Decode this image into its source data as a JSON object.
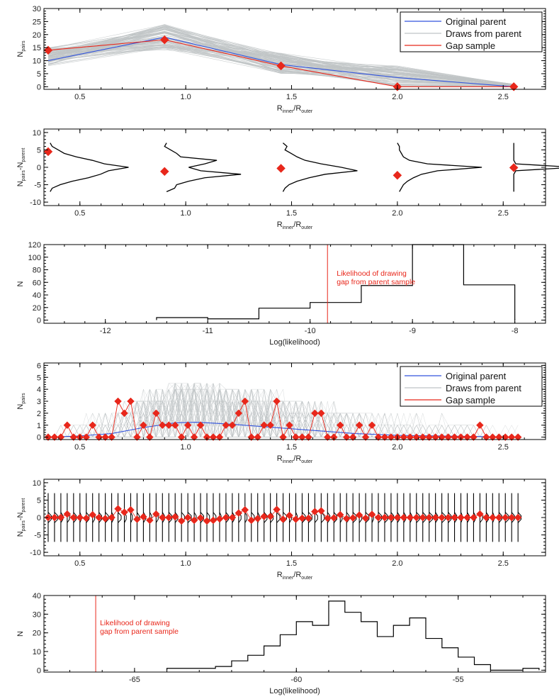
{
  "colors": {
    "original_parent": "#3355dd",
    "draws": "#bfc4c6",
    "gap": "#e8271b",
    "black": "#000000"
  },
  "chart_data": [
    {
      "id": "p1",
      "type": "line",
      "xlim": [
        0.33,
        2.7
      ],
      "ylim": [
        -1,
        30
      ],
      "xticks": [
        "0.5",
        "1.0",
        "1.5",
        "2.0",
        "2.5"
      ],
      "yticks": [
        "0",
        "5",
        "10",
        "15",
        "20",
        "25",
        "30"
      ],
      "xlabel": {
        "main": "R",
        "sub1": "inner",
        "mid": "/R",
        "sub2": "outer"
      },
      "ylabel": {
        "main": "N",
        "sub": "pairs"
      },
      "legend": {
        "placement": "top-right",
        "entries": [
          "Original parent",
          "Draws from parent",
          "Gap sample"
        ]
      },
      "series": [
        {
          "name": "Original parent",
          "x": [
            0.35,
            0.9,
            1.45,
            2.0,
            2.55
          ],
          "values": [
            10,
            19,
            8.5,
            3.5,
            0
          ]
        },
        {
          "name": "Gap sample",
          "x": [
            0.35,
            0.9,
            1.45,
            2.0,
            2.55
          ],
          "values": [
            14,
            18,
            8,
            0,
            0
          ]
        }
      ],
      "draws_band": {
        "x": [
          0.35,
          0.9,
          1.45,
          2.0,
          2.55
        ],
        "low": [
          8,
          14,
          5,
          0,
          0
        ],
        "high": [
          15,
          24,
          13,
          8,
          1
        ]
      }
    },
    {
      "id": "p2",
      "type": "line",
      "xlim": [
        0.33,
        2.7
      ],
      "ylim": [
        -11,
        11
      ],
      "xticks": [
        "0.5",
        "1.0",
        "1.5",
        "2.0",
        "2.5"
      ],
      "yticks": [
        "-10",
        "-5",
        "0",
        "5",
        "10"
      ],
      "xlabel": {
        "main": "R",
        "sub1": "inner",
        "mid": "/R",
        "sub2": "outer"
      },
      "ylabel": {
        "main": "N",
        "sub": "pairs",
        "mid": "-N",
        "sub2": "parent"
      },
      "points": {
        "x": [
          0.35,
          0.9,
          1.45,
          2.0,
          2.55
        ],
        "values": [
          4.5,
          -1.2,
          -0.3,
          -2.3,
          -0.1
        ]
      },
      "distributions": [
        {
          "x0": 0.35,
          "y": [
            -7,
            -6,
            -5,
            -4,
            -3,
            -2,
            -1,
            0,
            1,
            2,
            3,
            4,
            5,
            6,
            7
          ],
          "w": [
            0.01,
            0.02,
            0.06,
            0.12,
            0.2,
            0.26,
            0.3,
            0.4,
            0.28,
            0.22,
            0.14,
            0.08,
            0.05,
            0.02,
            0.01
          ]
        },
        {
          "x0": 0.9,
          "y": [
            -7,
            -6,
            -5,
            -4,
            -3,
            -2,
            -1,
            0,
            1,
            2,
            3,
            4,
            5,
            6,
            7
          ],
          "w": [
            0.01,
            0.05,
            0.06,
            0.12,
            0.2,
            0.38,
            0.18,
            0.12,
            0.2,
            0.26,
            0.08,
            0.06,
            0.03,
            0.0,
            0.01
          ]
        },
        {
          "x0": 1.45,
          "y": [
            -7,
            -6,
            -5,
            -4,
            -3,
            -2,
            -1,
            0,
            1,
            2,
            3,
            4,
            5,
            6,
            7
          ],
          "w": [
            0.01,
            0.02,
            0.04,
            0.08,
            0.14,
            0.22,
            0.38,
            0.3,
            0.2,
            0.12,
            0.08,
            0.05,
            0.02,
            0.03,
            0.01
          ]
        },
        {
          "x0": 2.0,
          "y": [
            -7,
            -6,
            -5,
            -4,
            -3,
            -2,
            -1,
            0,
            1,
            2,
            3,
            4,
            5,
            6,
            7
          ],
          "w": [
            0.01,
            0.02,
            0.03,
            0.05,
            0.08,
            0.12,
            0.2,
            0.42,
            0.15,
            0.06,
            0.03,
            0.02,
            0.01,
            0.01,
            0.0
          ]
        },
        {
          "x0": 2.55,
          "y": [
            -7,
            -6,
            -5,
            -4,
            -3,
            -2,
            -1,
            0,
            1,
            2,
            3,
            4,
            5,
            6,
            7
          ],
          "w": [
            0.0,
            0.0,
            0.0,
            0.0,
            0.0,
            0.0,
            0.01,
            0.3,
            0.01,
            0.0,
            0.0,
            0.0,
            0.0,
            0.0,
            0.0
          ]
        }
      ]
    },
    {
      "id": "p3",
      "type": "bar",
      "xlim": [
        -12.6,
        -7.7
      ],
      "ylim": [
        -5,
        120
      ],
      "xticks": [
        "-12",
        "-11",
        "-10",
        "-9",
        "-8"
      ],
      "yticks": [
        "0",
        "20",
        "40",
        "60",
        "80",
        "100",
        "120"
      ],
      "xlabel": "Log(likelihood)",
      "ylabel": "N",
      "bin_edges": [
        -11.5,
        -11.0,
        -10.5,
        -10.0,
        -9.5,
        -9.0,
        -8.5,
        -8.0
      ],
      "counts": [
        4,
        2,
        19,
        28,
        55,
        120,
        56
      ],
      "marker": {
        "x": -9.83,
        "label_line1": "Likelihood of drawing",
        "label_line2": "gap from parent sample"
      }
    },
    {
      "id": "p4",
      "type": "line",
      "xlim": [
        0.33,
        2.7
      ],
      "ylim": [
        -0.2,
        6.2
      ],
      "xticks": [
        "0.5",
        "1.0",
        "1.5",
        "2.0",
        "2.5"
      ],
      "yticks": [
        "0",
        "1",
        "2",
        "3",
        "4",
        "5",
        "6"
      ],
      "xlabel": {
        "main": "R",
        "sub1": "inner",
        "mid": "/R",
        "sub2": "outer"
      },
      "ylabel": {
        "main": "N",
        "sub": "pairs"
      },
      "legend": {
        "placement": "top-right",
        "entries": [
          "Original parent",
          "Draws from parent",
          "Gap sample"
        ]
      },
      "parent_curve": {
        "x": [
          0.35,
          0.5,
          0.65,
          0.8,
          0.95,
          1.05,
          1.2,
          1.35,
          1.5,
          1.65,
          1.8,
          2.0,
          2.2,
          2.4,
          2.58
        ],
        "values": [
          0.0,
          0.1,
          0.3,
          0.8,
          1.2,
          1.25,
          1.1,
          0.9,
          0.7,
          0.5,
          0.3,
          0.15,
          0.1,
          0.05,
          0.0
        ]
      },
      "gap": {
        "x": [
          0.35,
          0.38,
          0.41,
          0.44,
          0.47,
          0.5,
          0.53,
          0.56,
          0.59,
          0.62,
          0.65,
          0.68,
          0.71,
          0.74,
          0.77,
          0.8,
          0.83,
          0.86,
          0.89,
          0.92,
          0.95,
          0.98,
          1.01,
          1.04,
          1.07,
          1.1,
          1.13,
          1.16,
          1.19,
          1.22,
          1.25,
          1.28,
          1.31,
          1.34,
          1.37,
          1.4,
          1.43,
          1.46,
          1.49,
          1.52,
          1.55,
          1.58,
          1.61,
          1.64,
          1.67,
          1.7,
          1.73,
          1.76,
          1.79,
          1.82,
          1.85,
          1.88,
          1.91,
          1.94,
          1.97,
          2.0,
          2.03,
          2.06,
          2.09,
          2.12,
          2.15,
          2.18,
          2.21,
          2.24,
          2.27,
          2.3,
          2.33,
          2.36,
          2.39,
          2.42,
          2.45,
          2.48,
          2.51,
          2.54,
          2.57
        ],
        "values": [
          0,
          0,
          0,
          1,
          0,
          0,
          0,
          1,
          0,
          0,
          0,
          3,
          2,
          3,
          0,
          1,
          0,
          2,
          1,
          1,
          1,
          0,
          1,
          0,
          1,
          0,
          0,
          0,
          1,
          1,
          2,
          3,
          0,
          0,
          1,
          1,
          3,
          0,
          1,
          0,
          0,
          0,
          2,
          2,
          0,
          0,
          1,
          0,
          0,
          1,
          0,
          1,
          0,
          0,
          0,
          0,
          0,
          0,
          0,
          0,
          0,
          0,
          0,
          0,
          0,
          0,
          0,
          0,
          1,
          0,
          0,
          0,
          0,
          0,
          0
        ]
      }
    },
    {
      "id": "p5",
      "type": "line",
      "xlim": [
        0.33,
        2.7
      ],
      "ylim": [
        -11,
        11
      ],
      "xticks": [
        "0.5",
        "1.0",
        "1.5",
        "2.0",
        "2.5"
      ],
      "yticks": [
        "-10",
        "-5",
        "0",
        "5",
        "10"
      ],
      "xlabel": {
        "main": "R",
        "sub1": "inner",
        "mid": "/R",
        "sub2": "outer"
      },
      "ylabel": {
        "main": "N",
        "sub": "pairs",
        "mid": "-N",
        "sub2": "parent"
      },
      "x_start": 0.35,
      "x_step": 0.03,
      "n_points": 75,
      "points": [
        0,
        0,
        0,
        1,
        0,
        0,
        -0.2,
        0.8,
        0,
        -0.3,
        0,
        2.5,
        1.5,
        2.2,
        -0.5,
        0.2,
        -0.8,
        1,
        0,
        0,
        0.2,
        -1,
        0,
        -0.8,
        -0.1,
        -1,
        -0.8,
        -0.4,
        0,
        0,
        1.3,
        2.2,
        -0.8,
        -0.3,
        0.3,
        0.3,
        2.3,
        -0.5,
        0.6,
        -0.5,
        -0.2,
        -0.2,
        1.7,
        1.9,
        -0.2,
        -0.1,
        0.8,
        -0.3,
        -0.1,
        0.7,
        -0.2,
        0.9,
        0,
        0,
        0,
        0,
        0,
        0,
        0,
        0,
        0,
        0,
        0,
        0,
        0,
        0,
        0,
        0,
        1,
        0,
        0,
        0,
        0,
        0,
        0
      ]
    },
    {
      "id": "p6",
      "type": "bar",
      "xlim": [
        -67.8,
        -52.3
      ],
      "ylim": [
        -1,
        40
      ],
      "xticks": [
        "-65",
        "-60",
        "-55"
      ],
      "yticks": [
        "0",
        "10",
        "20",
        "30",
        "40"
      ],
      "xlabel": "Log(likelihood)",
      "ylabel": "N",
      "bin_edges": [
        -64,
        -63.5,
        -63,
        -62.5,
        -62,
        -61.5,
        -61,
        -60.5,
        -60,
        -59.5,
        -59,
        -58.5,
        -58,
        -57.5,
        -57,
        -56.5,
        -56,
        -55.5,
        -55,
        -54.5,
        -54,
        -53.5,
        -53,
        -52.5
      ],
      "counts": [
        1,
        1,
        1,
        2,
        5,
        8,
        13,
        19,
        26,
        24,
        37,
        31,
        26,
        18,
        24,
        28,
        17,
        12,
        7,
        3,
        0,
        0,
        1
      ],
      "marker": {
        "x": -66.2,
        "label_line1": "Likelihood of drawing",
        "label_line2": "gap from parent sample"
      }
    }
  ]
}
